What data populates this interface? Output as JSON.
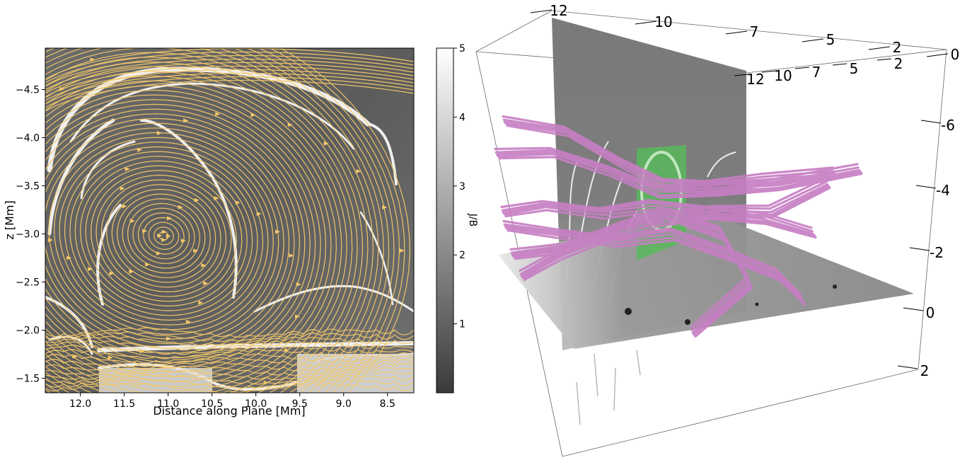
{
  "chart_data": [
    {
      "type": "heatmap",
      "title": "",
      "xlabel": "Distance along Plane [Mm]",
      "ylabel": "z [Mm]",
      "xlim": [
        12.4,
        8.2
      ],
      "ylim": [
        -1.35,
        -4.93
      ],
      "xticks": [
        12.0,
        11.5,
        11.0,
        10.5,
        10.0,
        9.5,
        9.0,
        8.5
      ],
      "xtick_labels": [
        "12.0",
        "11.5",
        "11.0",
        "10.5",
        "10.0",
        "9.5",
        "9.0",
        "8.5"
      ],
      "yticks": [
        -4.5,
        -4.0,
        -3.5,
        -3.0,
        -2.5,
        -2.0,
        -1.5
      ],
      "ytick_labels": [
        "−4.5",
        "−4.0",
        "−3.5",
        "−3.0",
        "−2.5",
        "−2.0",
        "−1.5"
      ],
      "flux_rope_center": {
        "x": 11.05,
        "z": -2.98
      },
      "streamline_color": "#f5c96a",
      "colorbar": {
        "label": "J/B",
        "range": [
          0,
          5
        ],
        "ticks": [
          1,
          2,
          3,
          4,
          5
        ],
        "tick_labels": [
          "1",
          "2",
          "3",
          "4",
          "5"
        ],
        "colormap": [
          "#3a3a3a",
          "#ffffff"
        ]
      }
    },
    {
      "type": "3d-volume",
      "field_line_color": "#c77fc4",
      "slice_color": "#58b85a",
      "axis_x_ticks": [
        "12",
        "10",
        "7",
        "5",
        "2",
        "0"
      ],
      "axis_y_ticks": [
        "12",
        "10",
        "7",
        "5",
        "2"
      ],
      "axis_z_ticks": [
        "-6",
        "-4",
        "-2",
        "0",
        "2"
      ]
    }
  ]
}
